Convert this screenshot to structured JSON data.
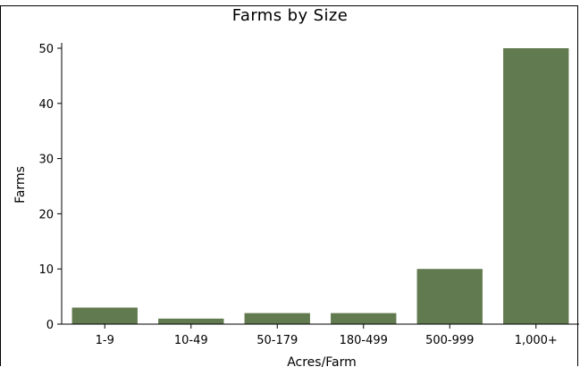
{
  "chart_data": {
    "type": "bar",
    "title": "Farms by Size",
    "xlabel": "Acres/Farm",
    "ylabel": "Farms",
    "categories": [
      "1-9",
      "10-49",
      "50-179",
      "180-499",
      "500-999",
      "1,000+"
    ],
    "values": [
      3,
      1,
      2,
      2,
      10,
      50
    ],
    "ylim": [
      0,
      50
    ],
    "yticks": [
      0,
      10,
      20,
      30,
      40,
      50
    ],
    "bar_color": "#627a4f",
    "grid": false,
    "legend": "none"
  }
}
